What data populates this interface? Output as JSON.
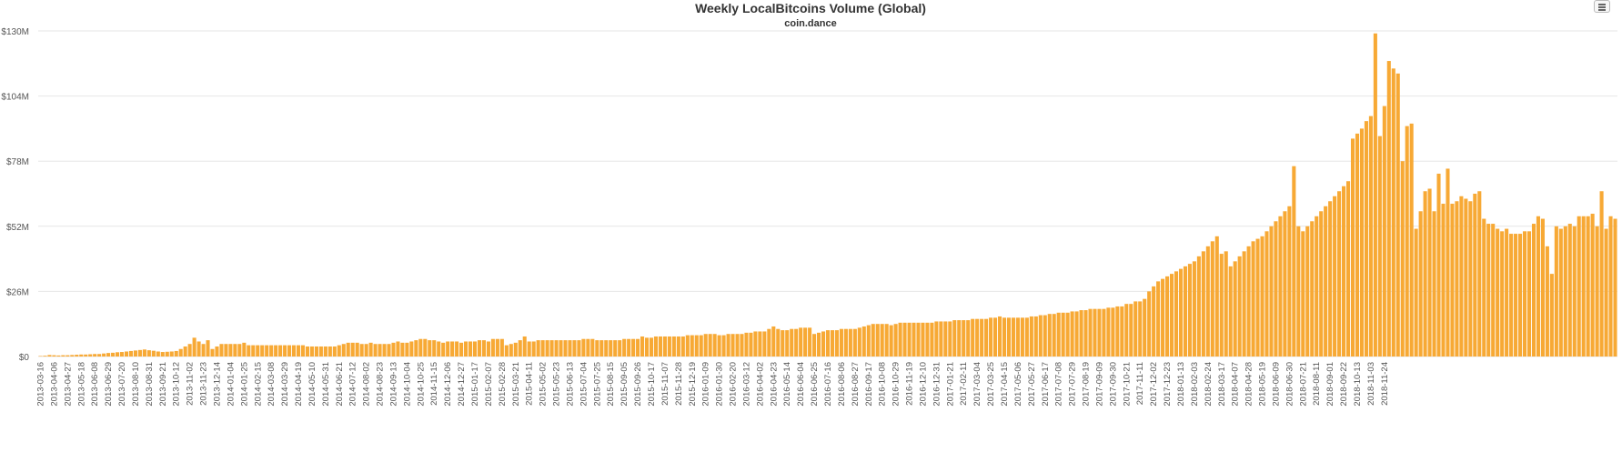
{
  "chart_data": {
    "type": "bar",
    "title": "Weekly LocalBitcoins Volume (Global)",
    "subtitle": "coin.dance",
    "color": "#f7a935",
    "grid": true,
    "legend": "none",
    "ylim": [
      0,
      130000000
    ],
    "y_ticks": [
      {
        "value": 0,
        "label": "$0"
      },
      {
        "value": 26000000,
        "label": "$26M"
      },
      {
        "value": 52000000,
        "label": "$52M"
      },
      {
        "value": 78000000,
        "label": "$78M"
      },
      {
        "value": 104000000,
        "label": "$104M"
      },
      {
        "value": 130000000,
        "label": "$130M"
      }
    ],
    "x_labels": [
      "2013-03-16",
      "2013-04-06",
      "2013-04-27",
      "2013-05-18",
      "2013-06-08",
      "2013-06-29",
      "2013-07-20",
      "2013-08-10",
      "2013-08-31",
      "2013-09-21",
      "2013-10-12",
      "2013-11-02",
      "2013-11-23",
      "2013-12-14",
      "2014-01-04",
      "2014-01-25",
      "2014-02-15",
      "2014-03-08",
      "2014-03-29",
      "2014-04-19",
      "2014-05-10",
      "2014-05-31",
      "2014-06-21",
      "2014-07-12",
      "2014-08-02",
      "2014-08-23",
      "2014-09-13",
      "2014-10-04",
      "2014-10-25",
      "2014-11-15",
      "2014-12-06",
      "2014-12-27",
      "2015-01-17",
      "2015-02-07",
      "2015-02-28",
      "2015-03-21",
      "2015-04-11",
      "2015-05-02",
      "2015-05-23",
      "2015-06-13",
      "2015-07-04",
      "2015-07-25",
      "2015-08-15",
      "2015-09-05",
      "2015-09-26",
      "2015-10-17",
      "2015-11-07",
      "2015-11-28",
      "2015-12-19",
      "2016-01-09",
      "2016-01-30",
      "2016-02-20",
      "2016-03-12",
      "2016-04-02",
      "2016-04-23",
      "2016-05-14",
      "2016-06-04",
      "2016-06-25",
      "2016-07-16",
      "2016-08-06",
      "2016-08-27",
      "2016-09-17",
      "2016-10-08",
      "2016-10-29",
      "2016-11-19",
      "2016-12-10",
      "2016-12-31",
      "2017-01-21",
      "2017-02-11",
      "2017-03-04",
      "2017-03-25",
      "2017-04-15",
      "2017-05-06",
      "2017-05-27",
      "2017-06-17",
      "2017-07-08",
      "2017-07-29",
      "2017-08-19",
      "2017-09-09",
      "2017-09-30",
      "2017-10-21",
      "2017-11-11",
      "2017-12-02",
      "2017-12-23",
      "2018-01-13",
      "2018-02-03",
      "2018-02-24",
      "2018-03-17",
      "2018-04-07",
      "2018-04-28",
      "2018-05-19",
      "2018-06-09",
      "2018-06-30",
      "2018-07-21",
      "2018-08-11",
      "2018-09-01",
      "2018-09-22",
      "2018-10-13",
      "2018-11-03",
      "2018-11-24"
    ],
    "bars_per_label": 3,
    "values": [
      0.2,
      0.3,
      0.6,
      0.5,
      0.4,
      0.5,
      0.5,
      0.6,
      0.7,
      0.8,
      0.8,
      0.9,
      1,
      1,
      1.2,
      1.4,
      1.5,
      1.7,
      1.8,
      2,
      2.2,
      2.4,
      2.6,
      2.8,
      2.5,
      2.3,
      2,
      1.8,
      1.9,
      2,
      2.2,
      3,
      4,
      5,
      7.5,
      6,
      5,
      6.5,
      3,
      4,
      5,
      5,
      5,
      5,
      5,
      5.5,
      4.5,
      4.5,
      4.5,
      4.5,
      4.5,
      4.5,
      4.5,
      4.5,
      4.5,
      4.5,
      4.5,
      4.5,
      4.5,
      4,
      4,
      4,
      4,
      4,
      4,
      4,
      4.5,
      5,
      5.5,
      5.5,
      5.5,
      5,
      5,
      5.5,
      5,
      5,
      5,
      5,
      5.5,
      6,
      5.5,
      5.5,
      6,
      6.5,
      7,
      7,
      6.5,
      6.5,
      6,
      5.5,
      6,
      6,
      6,
      5.5,
      6,
      6,
      6,
      6.5,
      6.5,
      6,
      7,
      7,
      7,
      4.5,
      5,
      5.5,
      6.5,
      8,
      6,
      6,
      6.5,
      6.5,
      6.5,
      6.5,
      6.5,
      6.5,
      6.5,
      6.5,
      6.5,
      6.5,
      7,
      7,
      7,
      6.5,
      6.5,
      6.5,
      6.5,
      6.5,
      6.5,
      7,
      7,
      7,
      7,
      8,
      7.5,
      7.5,
      8,
      8,
      8,
      8,
      8,
      8,
      8,
      8.5,
      8.5,
      8.5,
      8.5,
      9,
      9,
      9,
      8.5,
      8.5,
      9,
      9,
      9,
      9,
      9.5,
      9.5,
      10,
      10,
      10,
      11,
      12,
      11,
      10.5,
      10.5,
      11,
      11,
      11.5,
      11.5,
      11.5,
      9,
      9.5,
      10,
      10.5,
      10.5,
      10.5,
      11,
      11,
      11,
      11,
      11.5,
      12,
      12.5,
      13,
      13,
      13,
      13,
      12.5,
      13,
      13.5,
      13.5,
      13.5,
      13.5,
      13.5,
      13.5,
      13.5,
      13.5,
      14,
      14,
      14,
      14,
      14.5,
      14.5,
      14.5,
      14.5,
      15,
      15,
      15,
      15,
      15.5,
      15.5,
      16,
      15.5,
      15.5,
      15.5,
      15.5,
      15.5,
      15.5,
      16,
      16,
      16.5,
      16.5,
      17,
      17,
      17.5,
      17.5,
      17.5,
      18,
      18,
      18.5,
      18.5,
      19,
      19,
      19,
      19,
      19.5,
      19.5,
      20,
      20,
      21,
      21,
      22,
      22,
      23,
      26,
      28,
      30,
      31,
      32,
      33,
      34,
      35,
      36,
      37,
      38,
      40,
      42,
      44,
      46,
      48,
      41,
      42,
      36,
      38,
      40,
      42,
      44,
      46,
      47,
      48,
      50,
      52,
      54,
      56,
      58,
      60,
      76,
      52,
      50,
      52,
      54,
      56,
      58,
      60,
      62,
      64,
      66,
      68,
      70,
      87,
      89,
      91,
      94,
      96,
      129,
      88,
      100,
      118,
      115,
      113,
      78,
      92,
      93,
      51,
      58,
      66,
      67,
      58,
      73,
      61,
      75,
      61,
      62,
      64,
      63,
      62,
      65,
      66,
      55,
      53,
      53,
      51,
      50,
      51,
      49,
      49,
      49,
      50,
      50,
      53,
      56,
      55,
      44,
      33,
      52,
      51,
      52,
      53,
      52,
      56,
      56,
      56,
      57,
      52,
      66,
      51,
      56,
      55
    ]
  }
}
